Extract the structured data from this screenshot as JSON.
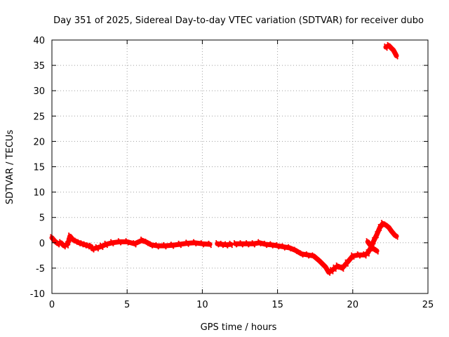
{
  "chart_data": {
    "type": "line",
    "title": "Day 351 of 2025, Sidereal Day-to-day VTEC variation (SDTVAR) for receiver dubo",
    "xlabel": "GPS time / hours",
    "ylabel": "SDTVAR / TECUs",
    "xlim": [
      0,
      25
    ],
    "ylim": [
      -10,
      40
    ],
    "grid": true,
    "x_ticks": [
      0,
      5,
      10,
      15,
      20,
      25
    ],
    "y_ticks": [
      -10,
      -5,
      0,
      5,
      10,
      15,
      20,
      25,
      30,
      35,
      40
    ],
    "series": [
      {
        "name": "SDTVAR",
        "color": "#ff0000",
        "segments": [
          {
            "x": [
              0.0,
              0.2,
              0.4,
              0.6,
              0.8,
              1.0,
              1.1,
              1.2,
              1.4,
              1.6,
              1.8,
              2.0,
              2.2,
              2.4,
              2.6
            ],
            "y": [
              1.0,
              0.3,
              -0.2,
              0.0,
              -0.6,
              -0.4,
              0.2,
              1.3,
              0.6,
              0.3,
              0.0,
              -0.2,
              -0.4,
              -0.6,
              -0.7
            ]
          },
          {
            "x": [
              2.7,
              3.0,
              3.3,
              3.6,
              4.0,
              4.5,
              5.0,
              5.5,
              6.0,
              6.3,
              6.6,
              7.0,
              7.5,
              8.0,
              8.5,
              9.0,
              9.5,
              10.0,
              10.5
            ],
            "y": [
              -1.2,
              -1.0,
              -0.7,
              -0.3,
              0.0,
              0.2,
              0.2,
              -0.2,
              0.5,
              0.1,
              -0.4,
              -0.6,
              -0.6,
              -0.5,
              -0.3,
              -0.1,
              0.0,
              -0.2,
              -0.3
            ]
          },
          {
            "x": [
              11.0,
              11.3,
              11.6,
              11.9
            ],
            "y": [
              -0.2,
              -0.3,
              -0.4,
              -0.3
            ]
          },
          {
            "x": [
              12.2,
              12.6,
              13.0,
              13.4,
              13.8,
              14.2,
              14.6,
              15.0,
              15.4,
              15.8,
              16.2,
              16.6,
              17.0,
              17.4,
              17.8,
              18.2,
              18.4,
              18.6,
              18.8,
              19.0,
              19.3,
              19.6,
              20.0,
              20.4,
              20.8,
              21.0,
              21.2,
              21.4,
              21.6,
              21.8,
              22.0,
              22.2,
              22.4,
              22.6,
              22.8,
              22.9
            ],
            "y": [
              -0.2,
              -0.2,
              -0.2,
              -0.2,
              0.0,
              -0.3,
              -0.4,
              -0.6,
              -0.8,
              -1.0,
              -1.5,
              -2.2,
              -2.4,
              -2.6,
              -3.6,
              -4.8,
              -5.8,
              -5.5,
              -5.0,
              -4.6,
              -5.0,
              -4.0,
              -2.6,
              -2.4,
              -2.4,
              -2.0,
              -1.0,
              0.4,
              1.6,
              3.0,
              3.8,
              3.5,
              3.0,
              2.2,
              1.5,
              1.3
            ]
          },
          {
            "x": [
              21.0,
              21.3,
              21.6
            ],
            "y": [
              0.2,
              -1.0,
              -1.6
            ]
          },
          {
            "x": [
              22.2,
              22.4,
              22.6,
              22.7,
              22.8,
              22.9
            ],
            "y": [
              38.6,
              38.9,
              38.3,
              38.0,
              37.5,
              36.9
            ]
          }
        ]
      }
    ]
  }
}
